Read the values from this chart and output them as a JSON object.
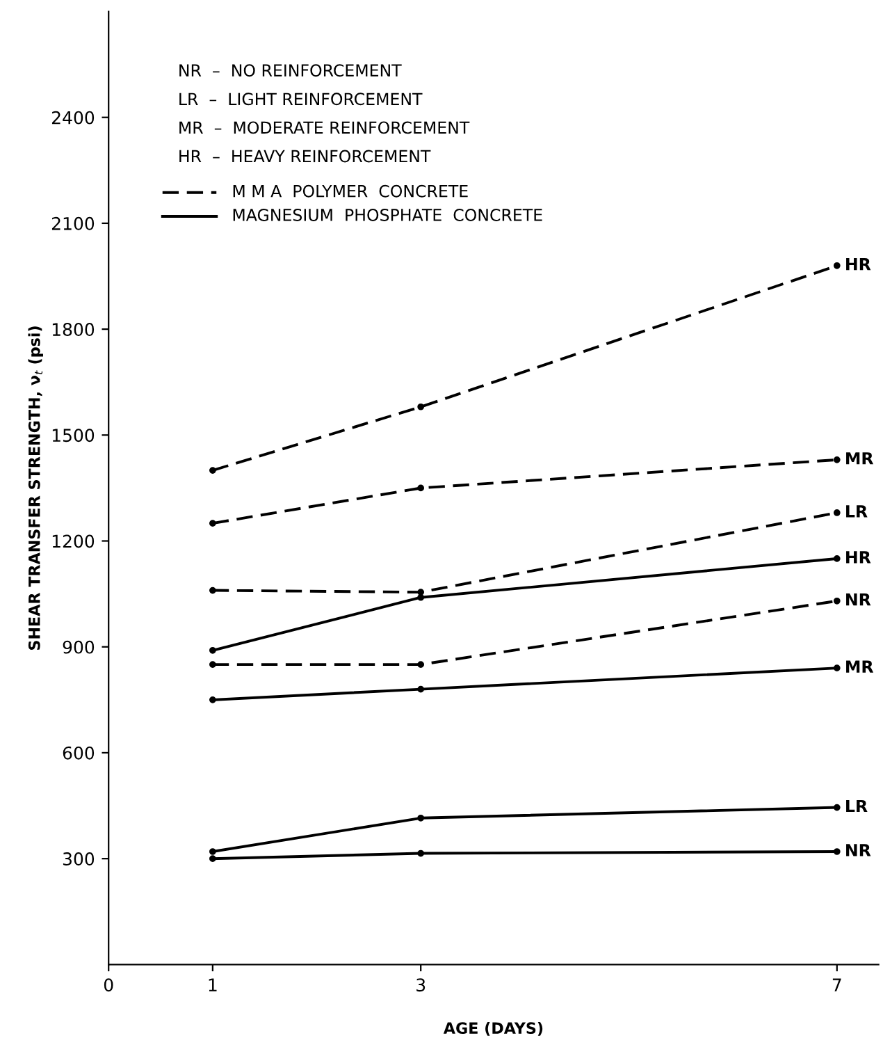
{
  "chart_data": {
    "type": "line",
    "xlabel": "AGE (DAYS)",
    "ylabel": "SHEAR TRANSFER STRENGTH, ν$_{t}$ (psi)",
    "x": [
      1,
      3,
      7
    ],
    "xlim": [
      0,
      7.4
    ],
    "xticks": [
      0,
      1,
      3,
      7
    ],
    "ylim": [
      0,
      2700
    ],
    "yticks": [
      300,
      600,
      900,
      1200,
      1500,
      1800,
      2100,
      2400
    ],
    "grid": false,
    "marker": "circle",
    "annotations": [
      "NR  –  NO REINFORCEMENT",
      "LR  –  LIGHT REINFORCEMENT",
      "MR  –  MODERATE REINFORCEMENT",
      "HR  –  HEAVY REINFORCEMENT",
      "M M A  POLYMER  CONCRETE",
      "MAGNESIUM  PHOSPHATE  CONCRETE"
    ],
    "series": [
      {
        "name": "HR",
        "color": "#000000",
        "line_style": "dashed",
        "values": [
          1400,
          1580,
          1980
        ]
      },
      {
        "name": "MR",
        "color": "#000000",
        "line_style": "dashed",
        "values": [
          1250,
          1350,
          1430
        ]
      },
      {
        "name": "LR",
        "color": "#000000",
        "line_style": "dashed",
        "values": [
          1060,
          1055,
          1280
        ]
      },
      {
        "name": "NR",
        "color": "#000000",
        "line_style": "dashed",
        "values": [
          850,
          850,
          1030
        ]
      },
      {
        "name": "HR",
        "color": "#000000",
        "line_style": "solid",
        "values": [
          890,
          1040,
          1150
        ]
      },
      {
        "name": "MR",
        "color": "#000000",
        "line_style": "solid",
        "values": [
          750,
          780,
          840
        ]
      },
      {
        "name": "LR",
        "color": "#000000",
        "line_style": "solid",
        "values": [
          320,
          415,
          445
        ]
      },
      {
        "name": "NR",
        "color": "#000000",
        "line_style": "solid",
        "values": [
          300,
          315,
          320
        ]
      }
    ]
  }
}
